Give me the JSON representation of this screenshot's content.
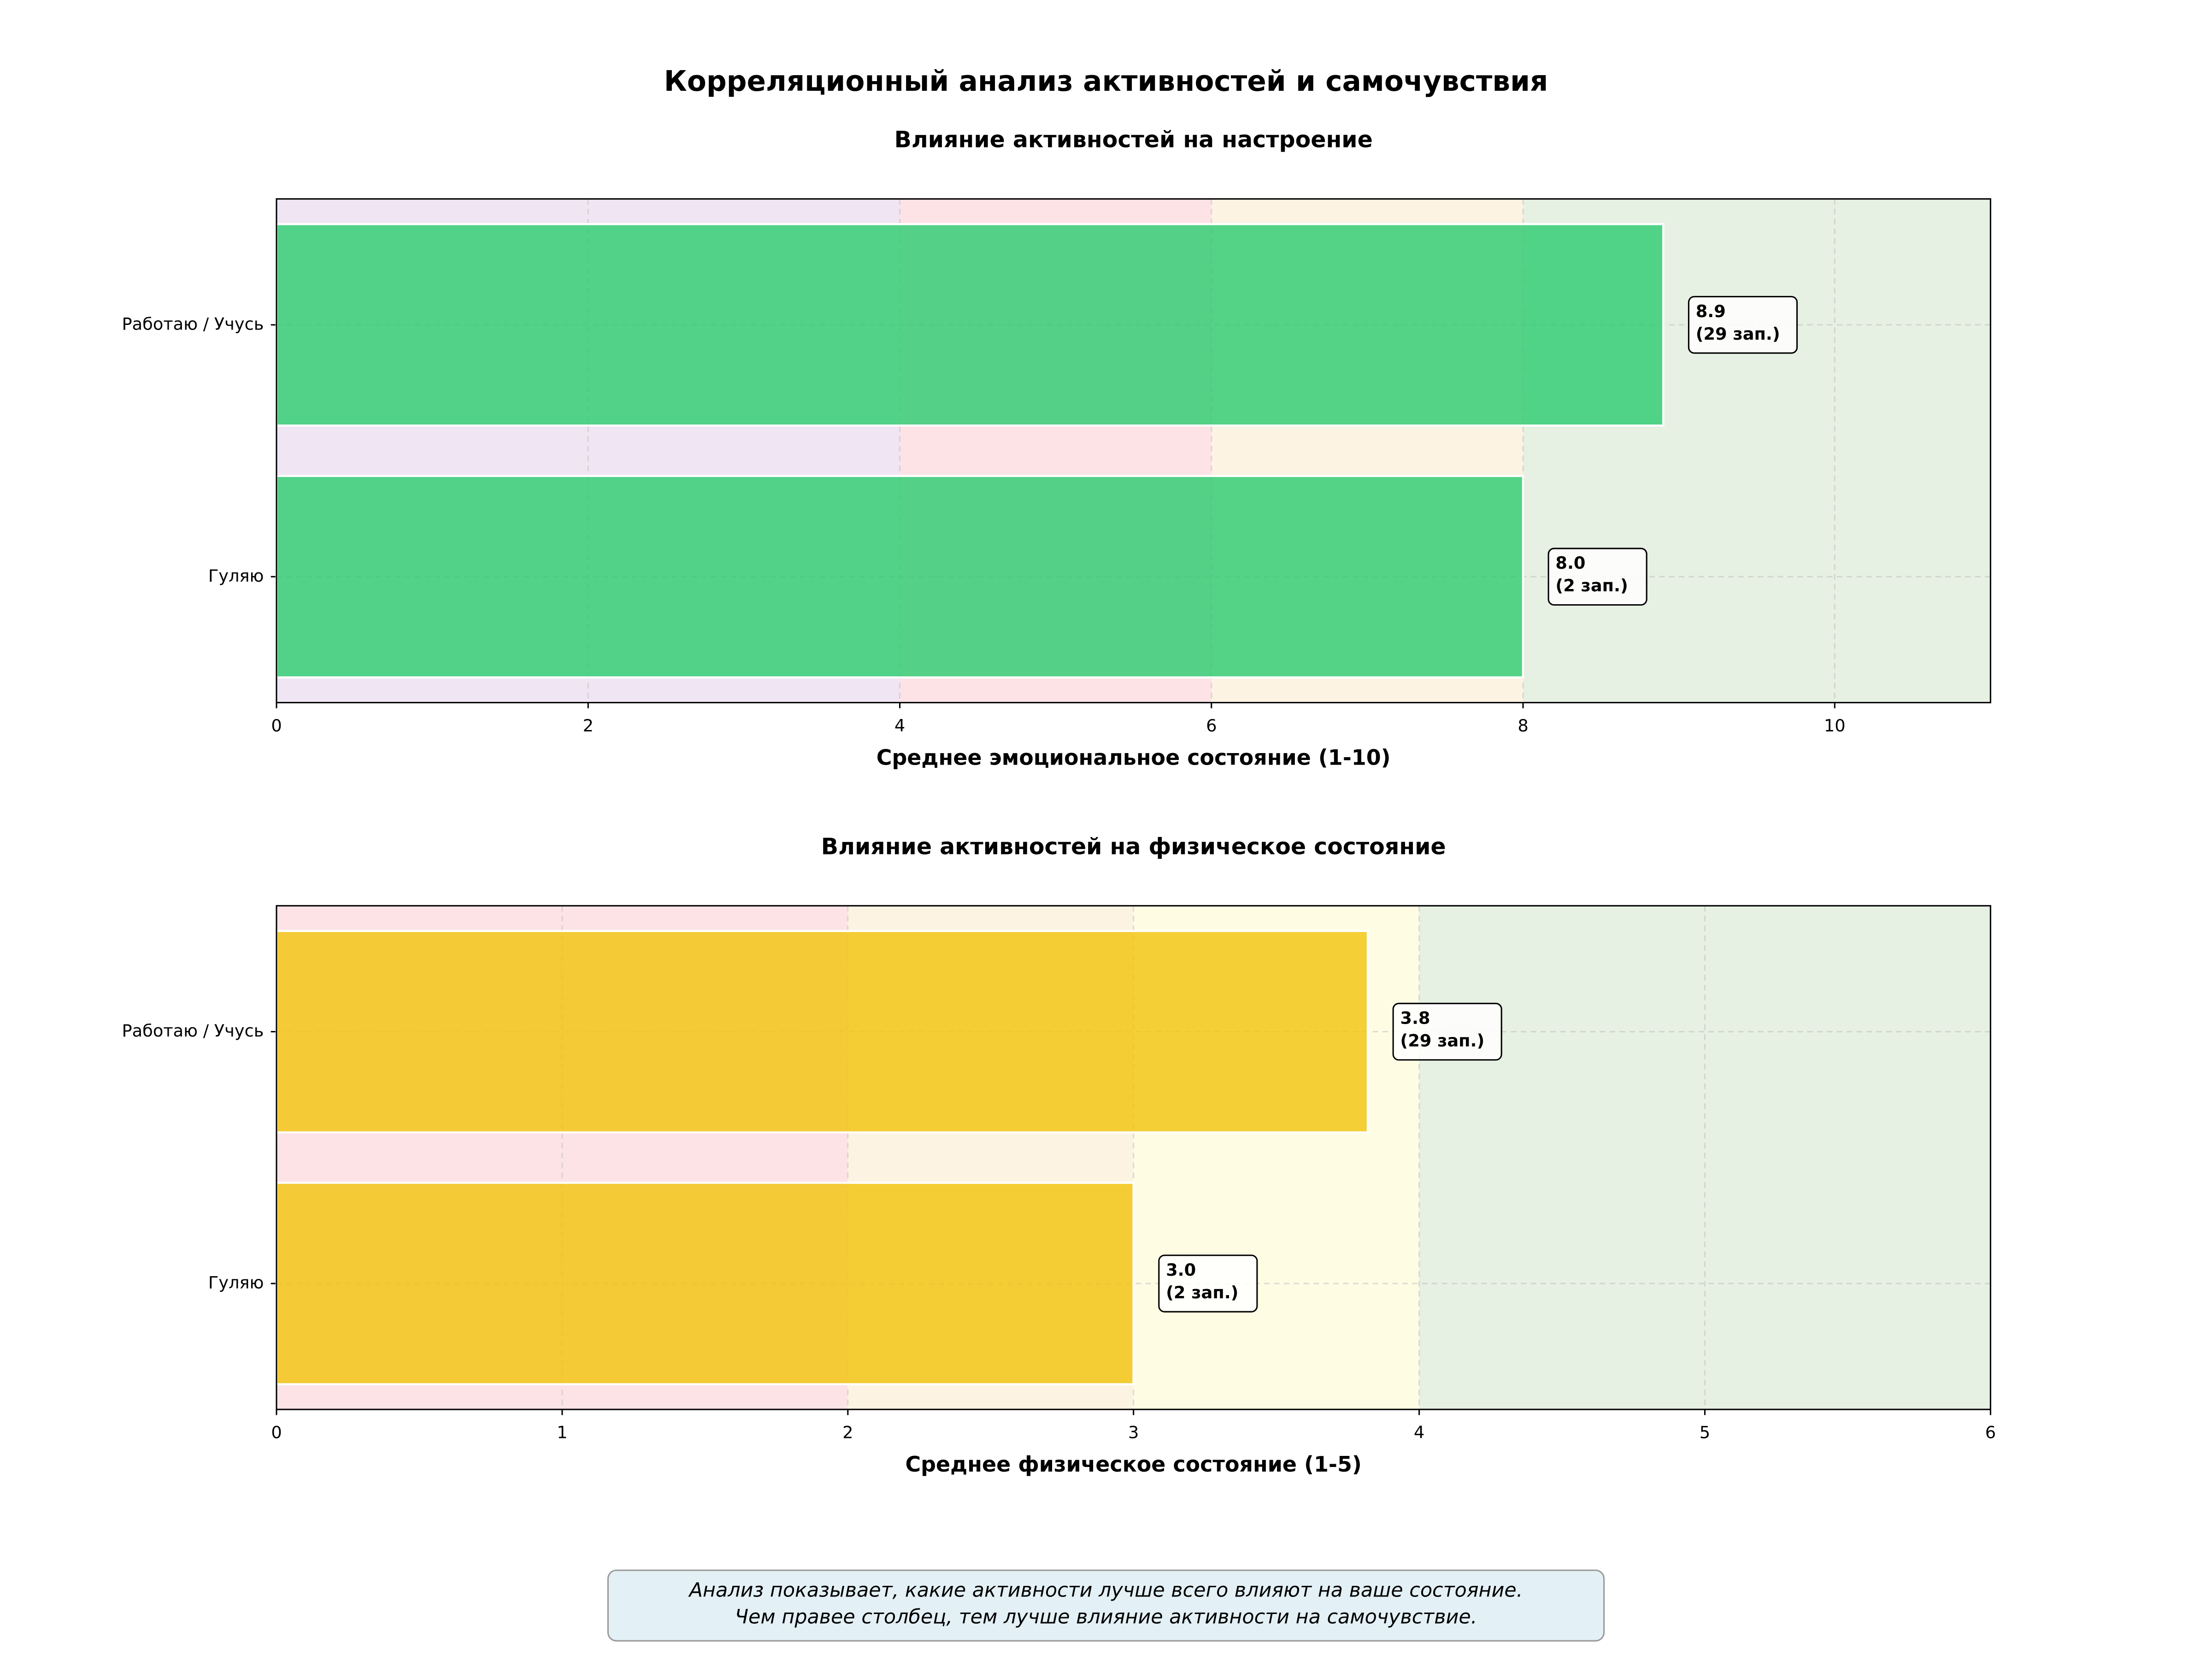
{
  "title": "Корреляционный анализ активностей и самочувствия",
  "note": [
    "Анализ показывает, какие активности лучше всего влияют на ваше состояние.",
    "Чем правее столбец, тем лучше влияние активности на самочувствие."
  ],
  "chart_data": [
    {
      "type": "bar",
      "orientation": "horizontal",
      "title": "Влияние активностей на настроение",
      "x_label": "Среднее эмоциональное состояние (1-10)",
      "categories": [
        "Работаю / Учусь",
        "Гуляю"
      ],
      "values": [
        8.9,
        8.0
      ],
      "value_labels": [
        "8.9",
        "8.0"
      ],
      "annotations": [
        "(29 зап.)",
        "(2 зап.)"
      ],
      "color": "#2ecc71",
      "xlim": [
        0,
        11
      ],
      "xticks": [
        0,
        2,
        4,
        6,
        8,
        10
      ],
      "grid": true,
      "bands": [
        {
          "from": 0,
          "to": 4,
          "color": "#f0e6f3"
        },
        {
          "from": 4,
          "to": 6,
          "color": "#fde3e6"
        },
        {
          "from": 6,
          "to": 8,
          "color": "#fdf3e3"
        },
        {
          "from": 8,
          "to": 11,
          "color": "#e6f0e3"
        }
      ]
    },
    {
      "type": "bar",
      "orientation": "horizontal",
      "title": "Влияние активностей на физическое состояние",
      "x_label": "Среднее физическое состояние (1-5)",
      "categories": [
        "Работаю / Учусь",
        "Гуляю"
      ],
      "values": [
        3.82,
        3.0
      ],
      "value_labels": [
        "3.8",
        "3.0"
      ],
      "annotations": [
        "(29 зап.)",
        "(2 зап.)"
      ],
      "color": "#f1c40f",
      "xlim": [
        0,
        6
      ],
      "xticks": [
        0,
        1,
        2,
        3,
        4,
        5,
        6
      ],
      "grid": true,
      "bands": [
        {
          "from": 0,
          "to": 2,
          "color": "#fde3e6"
        },
        {
          "from": 2,
          "to": 3,
          "color": "#fdf3e3"
        },
        {
          "from": 3,
          "to": 4,
          "color": "#fefde3"
        },
        {
          "from": 4,
          "to": 6,
          "color": "#e6f0e3"
        }
      ]
    }
  ]
}
